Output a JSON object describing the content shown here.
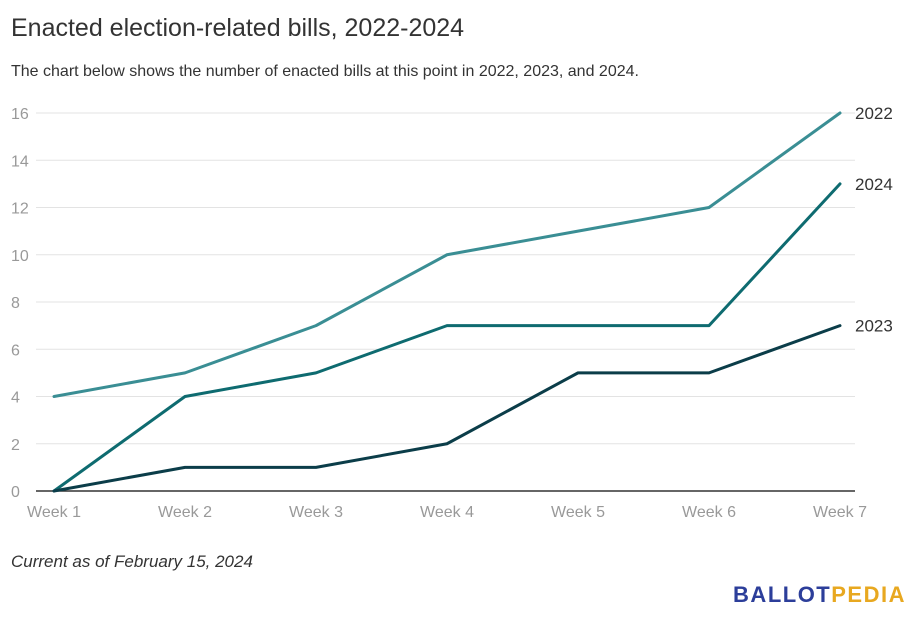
{
  "title": "Enacted election-related bills, 2022-2024",
  "subtitle": "The chart below shows the number of enacted bills at this point in 2022, 2023, and 2024.",
  "footnote": "Current as of February 15, 2024",
  "logo": {
    "part1": "BALLOT",
    "part2": "PEDIA",
    "color1": "#2c3e9a",
    "color2": "#e8a820"
  },
  "chart_data": {
    "type": "line",
    "categories": [
      "Week 1",
      "Week 2",
      "Week 3",
      "Week 4",
      "Week 5",
      "Week 6",
      "Week 7"
    ],
    "series": [
      {
        "name": "2022",
        "values": [
          4,
          5,
          7,
          10,
          11,
          12,
          16
        ],
        "color": "#3a8e94"
      },
      {
        "name": "2024",
        "values": [
          0,
          4,
          5,
          7,
          7,
          7,
          13
        ],
        "color": "#0e6b70"
      },
      {
        "name": "2023",
        "values": [
          0,
          1,
          1,
          2,
          5,
          5,
          7
        ],
        "color": "#0b3d49"
      }
    ],
    "yticks": [
      0,
      2,
      4,
      6,
      8,
      10,
      12,
      14,
      16
    ],
    "ylim": [
      0,
      16
    ],
    "grid": true,
    "legend": "line-end labels"
  }
}
